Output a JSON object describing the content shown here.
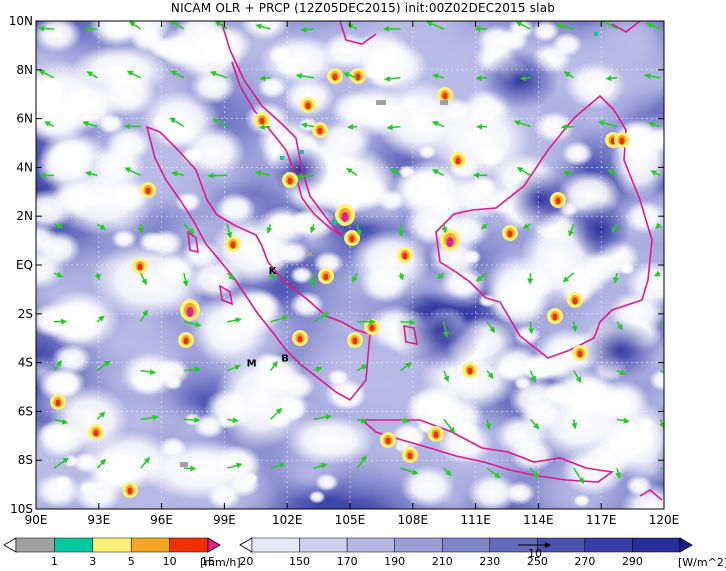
{
  "title": "NICAM OLR + PRCP (12Z05DEC2015) init:00Z02DEC2015 slab",
  "map": {
    "lon_range": [
      90,
      120
    ],
    "lat_range": [
      -10,
      10
    ],
    "lon_ticks": [
      "90E",
      "93E",
      "96E",
      "99E",
      "102E",
      "105E",
      "108E",
      "111E",
      "114E",
      "117E",
      "120E"
    ],
    "lat_ticks": [
      "10N",
      "8N",
      "6N",
      "4N",
      "2N",
      "EQ",
      "2S",
      "4S",
      "6S",
      "8S",
      "10S"
    ],
    "stations": [
      {
        "label": "K",
        "lon": 101.3,
        "lat": -0.2
      },
      {
        "label": "M",
        "lon": 100.3,
        "lat": -4.0
      },
      {
        "label": "B",
        "lon": 101.9,
        "lat": -3.8
      }
    ],
    "colors": {
      "coast": "#dd1a8a",
      "wind": "#22cc22",
      "deep_cloud": "#2b33a0",
      "clear": "#ffffff"
    }
  },
  "precip_bar": {
    "labels": [
      "1",
      "3",
      "5",
      "10",
      "15",
      "20"
    ],
    "unit": "[mm/h]",
    "colors": [
      "#ffffff",
      "#a0a0a0",
      "#00c8a0",
      "#fff07a",
      "#f5a623",
      "#f03000",
      "#e0209a"
    ]
  },
  "olr_bar": {
    "labels": [
      "150",
      "170",
      "190",
      "210",
      "230",
      "250",
      "270",
      "290"
    ],
    "unit": "[W/m^2]",
    "colors": [
      "#ffffff",
      "#e7e7f5",
      "#cfd0ec",
      "#b5b7e0",
      "#9b9ed4",
      "#7f83c7",
      "#6569ba",
      "#4c51ad",
      "#383ea3",
      "#262c99",
      "#181e8e"
    ]
  },
  "vector_ref": {
    "label": "10"
  }
}
